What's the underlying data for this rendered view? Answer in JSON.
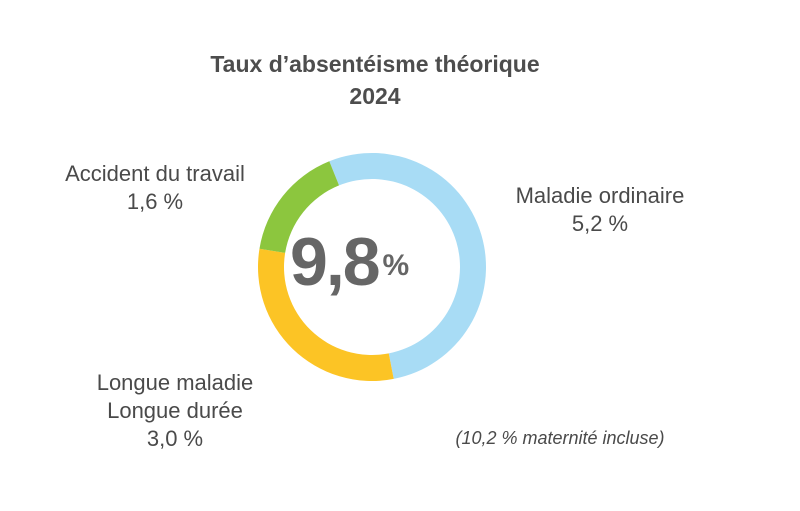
{
  "chart": {
    "title_line1": "Taux d’absentéisme théorique",
    "title_line2": "2024",
    "center_value": "9,8",
    "center_unit": "%",
    "note": "(10,2 % maternité incluse)"
  },
  "labels": {
    "green": {
      "name": "Accident du travail",
      "value": "1,6 %"
    },
    "blue": {
      "name": "Maladie ordinaire",
      "value": "5,2 %"
    },
    "yellow": {
      "name_line1": "Longue maladie",
      "name_line2": "Longue durée",
      "value": "3,0 %"
    }
  },
  "colors": {
    "blue": "#a8dcf5",
    "yellow": "#fcc425",
    "green": "#8cc63e",
    "text": "#4a4a4a",
    "center": "#666666"
  },
  "chart_data": {
    "type": "pie",
    "subtype": "donut",
    "title": "Taux d’absentéisme théorique 2024",
    "total": 9.8,
    "total_label": "9,8 %",
    "unit": "%",
    "categories": [
      "Maladie ordinaire",
      "Longue maladie / Longue durée",
      "Accident du travail"
    ],
    "values": [
      5.2,
      3.0,
      1.6
    ],
    "colors": [
      "#a8dcf5",
      "#fcc425",
      "#8cc63e"
    ],
    "annotations": [
      "(10,2 % maternité incluse)"
    ],
    "legend": "none (direct labels)"
  }
}
